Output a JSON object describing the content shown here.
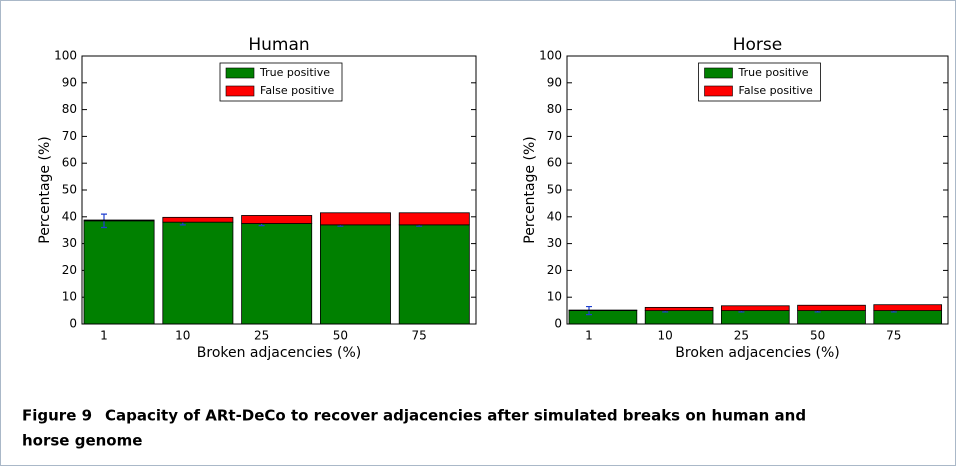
{
  "chart_data": [
    {
      "type": "bar",
      "title": "Human",
      "x_label": "Broken adjacencies (%)",
      "y_label": "Percentage (%)",
      "categories": [
        "1",
        "10",
        "25",
        "50",
        "75"
      ],
      "series": [
        {
          "name": "True positive",
          "color": "#008000",
          "values": [
            38.5,
            38,
            37.5,
            37,
            37
          ],
          "errors": [
            2.5,
            1,
            0.8,
            0.5,
            0.5
          ]
        },
        {
          "name": "False positive",
          "color": "#ff0000",
          "values": [
            0.3,
            1.8,
            3,
            4.5,
            4.5
          ]
        }
      ],
      "ylim": [
        0,
        100
      ],
      "yticks": [
        0,
        10,
        20,
        30,
        40,
        50,
        60,
        70,
        80,
        90,
        100
      ],
      "legend": "upper center"
    },
    {
      "type": "bar",
      "title": "Horse",
      "x_label": "Broken adjacencies (%)",
      "y_label": "Percentage (%)",
      "categories": [
        "1",
        "10",
        "25",
        "50",
        "75"
      ],
      "series": [
        {
          "name": "True positive",
          "color": "#008000",
          "values": [
            5,
            5,
            5,
            5,
            5
          ],
          "errors": [
            1.5,
            0.5,
            0.5,
            0.5,
            0.5
          ]
        },
        {
          "name": "False positive",
          "color": "#ff0000",
          "values": [
            0.2,
            1.2,
            1.8,
            2,
            2.2
          ]
        }
      ],
      "ylim": [
        0,
        100
      ],
      "yticks": [
        0,
        10,
        20,
        30,
        40,
        50,
        60,
        70,
        80,
        90,
        100
      ],
      "legend": "upper center"
    }
  ],
  "caption": {
    "label": "Figure 9",
    "text_line1": "Capacity of ARt-DeCo to recover adjacencies after simulated breaks on human and",
    "text_line2": "horse genome"
  }
}
